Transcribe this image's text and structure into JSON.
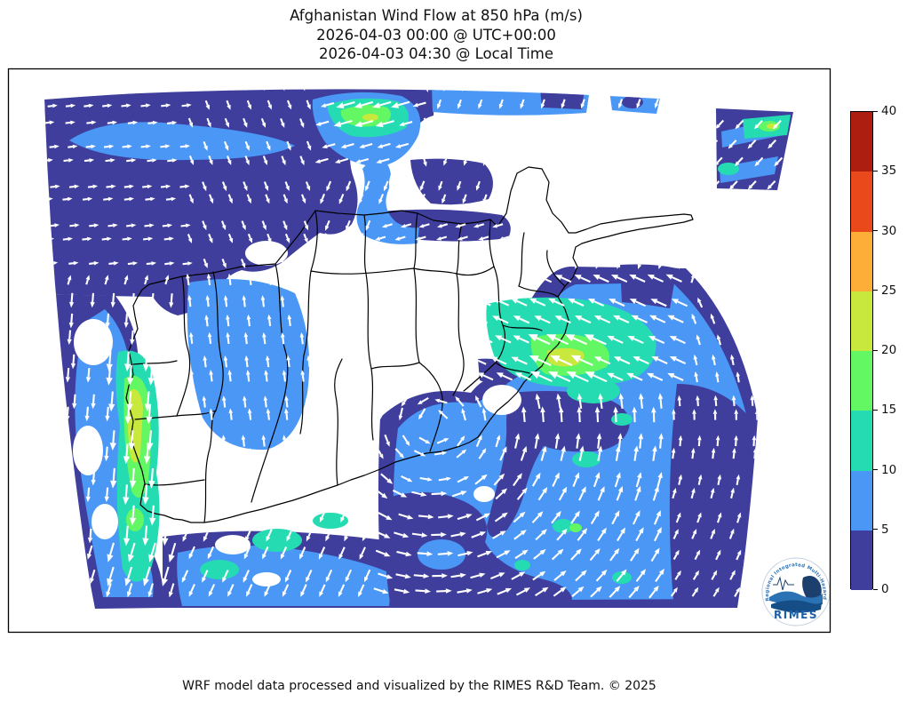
{
  "header": {
    "title_line1": "Afghanistan Wind Flow at 850 hPa (m/s)",
    "title_line2": "2026-04-03 00:00 @ UTC+00:00",
    "title_line3": "2026-04-03 04:30 @ Local Time"
  },
  "footer": {
    "credit": "WRF model data processed and visualized by the RIMES R&D Team. © 2025"
  },
  "colorbar": {
    "min": 0,
    "max": 40,
    "ticks": [
      "0",
      "5",
      "10",
      "15",
      "20",
      "25",
      "30",
      "35",
      "40"
    ],
    "segments": [
      {
        "range": "0-5",
        "color": "#3f3e9c"
      },
      {
        "range": "5-10",
        "color": "#4a97f5"
      },
      {
        "range": "10-15",
        "color": "#25dcb2"
      },
      {
        "range": "15-20",
        "color": "#63f763"
      },
      {
        "range": "20-25",
        "color": "#c9e83e"
      },
      {
        "range": "25-30",
        "color": "#fcae38"
      },
      {
        "range": "30-35",
        "color": "#ea4a1b"
      },
      {
        "range": "35-40",
        "color": "#ad1d10"
      }
    ]
  },
  "map": {
    "arrow_color": "#ffffff",
    "boundary_color": "#000000",
    "background": "#ffffff"
  },
  "logo": {
    "label": "RIMES",
    "ring_text": "Regional Integrated Multi-Hazard Early Warning System"
  }
}
